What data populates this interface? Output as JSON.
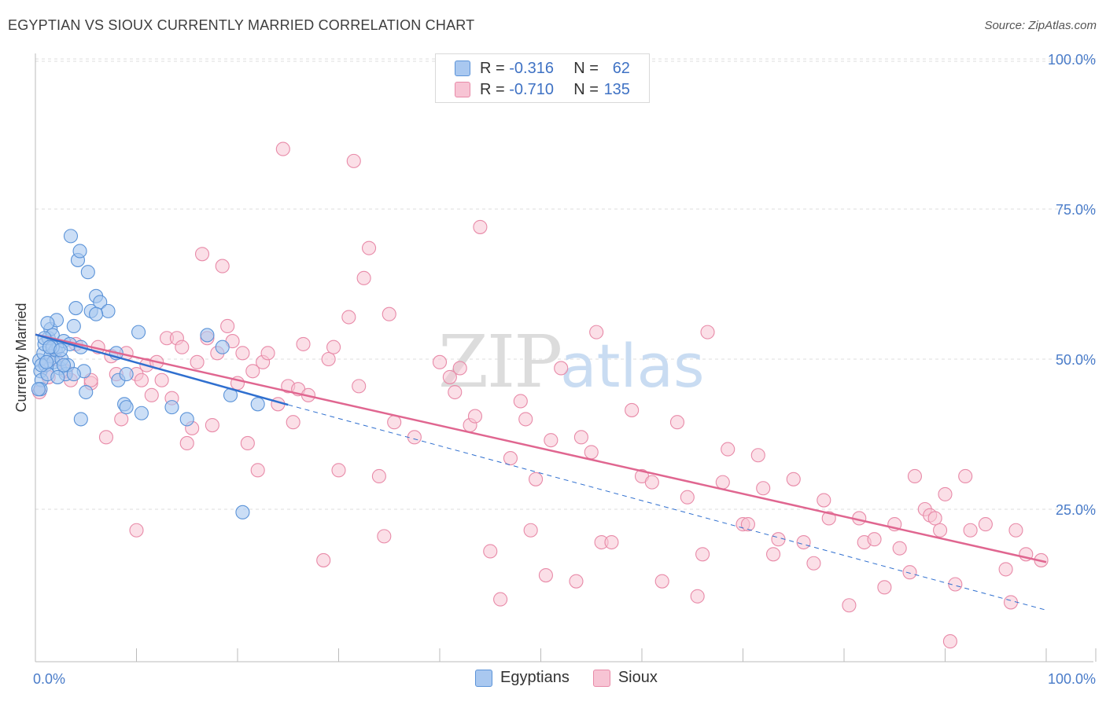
{
  "title": "EGYPTIAN VS SIOUX CURRENTLY MARRIED CORRELATION CHART",
  "source": "Source: ZipAtlas.com",
  "watermark": {
    "zip": "ZIP",
    "atlas": "atlas"
  },
  "colors": {
    "egyptians_fill": "#a9c8f0",
    "egyptians_stroke": "#5b93d8",
    "egyptians_line": "#2f6fcf",
    "sioux_fill": "#f7c4d4",
    "sioux_stroke": "#e88aa8",
    "sioux_line": "#e06690",
    "axis_label": "#4a7cc9",
    "grid": "#dddddd"
  },
  "legend": {
    "r_label": "R =",
    "n_label": "N =",
    "egyptians": {
      "r": "-0.316",
      "n": "62"
    },
    "sioux": {
      "r": "-0.710",
      "n": "135"
    }
  },
  "bottom_legend": {
    "egyptians": "Egyptians",
    "sioux": "Sioux"
  },
  "chart_data": {
    "type": "scatter",
    "title": "EGYPTIAN VS SIOUX CURRENTLY MARRIED CORRELATION CHART",
    "xlabel": "",
    "ylabel": "Currently Married",
    "xlim": [
      0,
      100
    ],
    "ylim": [
      0,
      100
    ],
    "x_tick_labels": [
      "0.0%",
      "100.0%"
    ],
    "y_tick_labels": [
      "100.0%",
      "75.0%",
      "50.0%",
      "25.0%"
    ],
    "y_ticks": [
      100,
      75,
      50,
      25
    ],
    "grid": true,
    "series": [
      {
        "name": "Egyptians",
        "trend": {
          "x0": 0,
          "y0": 54.1,
          "x1": 25.0,
          "y1": 42.4,
          "dashed_to_x": 100,
          "dashed_to_y": 8.2
        },
        "points": [
          [
            0.4,
            49.8
          ],
          [
            0.5,
            48.0
          ],
          [
            0.6,
            46.5
          ],
          [
            0.5,
            45.0
          ],
          [
            0.8,
            51.0
          ],
          [
            0.9,
            52.5
          ],
          [
            1.0,
            49.0
          ],
          [
            1.2,
            47.5
          ],
          [
            1.3,
            53.5
          ],
          [
            1.5,
            55.0
          ],
          [
            1.5,
            50.5
          ],
          [
            1.7,
            54.0
          ],
          [
            1.8,
            49.5
          ],
          [
            2.0,
            51.5
          ],
          [
            2.1,
            56.5
          ],
          [
            2.3,
            52.0
          ],
          [
            2.4,
            48.5
          ],
          [
            2.6,
            50.0
          ],
          [
            2.8,
            53.0
          ],
          [
            3.0,
            47.5
          ],
          [
            3.2,
            49.0
          ],
          [
            3.4,
            52.5
          ],
          [
            3.5,
            70.5
          ],
          [
            3.8,
            55.5
          ],
          [
            4.0,
            58.5
          ],
          [
            4.2,
            66.5
          ],
          [
            4.4,
            68.0
          ],
          [
            4.5,
            52.0
          ],
          [
            4.8,
            48.0
          ],
          [
            5.2,
            64.5
          ],
          [
            5.5,
            58.0
          ],
          [
            6.0,
            60.5
          ],
          [
            6.4,
            59.5
          ],
          [
            7.2,
            58.0
          ],
          [
            8.2,
            46.5
          ],
          [
            8.8,
            42.5
          ],
          [
            9.0,
            47.5
          ],
          [
            10.2,
            54.5
          ],
          [
            10.5,
            41.0
          ],
          [
            13.5,
            42.0
          ],
          [
            15.0,
            40.0
          ],
          [
            17.0,
            54.0
          ],
          [
            18.5,
            52.0
          ],
          [
            19.3,
            44.0
          ],
          [
            20.5,
            24.5
          ],
          [
            22.0,
            42.5
          ],
          [
            2.8,
            49.0
          ],
          [
            4.5,
            40.0
          ],
          [
            5.0,
            44.5
          ],
          [
            1.2,
            56.0
          ],
          [
            0.9,
            53.5
          ],
          [
            1.7,
            52.0
          ],
          [
            6.0,
            57.5
          ],
          [
            2.2,
            47.0
          ],
          [
            3.8,
            47.5
          ],
          [
            0.6,
            49.0
          ],
          [
            1.1,
            49.5
          ],
          [
            1.4,
            52.0
          ],
          [
            0.3,
            45.0
          ],
          [
            8.0,
            51.0
          ],
          [
            9.0,
            42.0
          ],
          [
            2.5,
            51.5
          ]
        ]
      },
      {
        "name": "Sioux",
        "trend": {
          "x0": 0,
          "y0": 54.1,
          "x1": 100,
          "y1": 16.2
        },
        "points": [
          [
            0.4,
            44.5
          ],
          [
            1.3,
            47.0
          ],
          [
            2.0,
            50.0
          ],
          [
            3.0,
            48.0
          ],
          [
            3.5,
            46.5
          ],
          [
            4.0,
            52.5
          ],
          [
            5.5,
            46.0
          ],
          [
            6.2,
            52.0
          ],
          [
            7.0,
            37.0
          ],
          [
            7.5,
            50.5
          ],
          [
            8.0,
            47.5
          ],
          [
            8.5,
            40.0
          ],
          [
            9.0,
            51.0
          ],
          [
            10.0,
            47.5
          ],
          [
            10.5,
            46.5
          ],
          [
            11.0,
            49.0
          ],
          [
            11.5,
            44.0
          ],
          [
            12.0,
            49.5
          ],
          [
            12.5,
            46.5
          ],
          [
            13.0,
            53.5
          ],
          [
            13.5,
            43.5
          ],
          [
            14.0,
            53.5
          ],
          [
            14.5,
            52.0
          ],
          [
            15.0,
            36.0
          ],
          [
            15.5,
            38.5
          ],
          [
            16.0,
            49.5
          ],
          [
            16.5,
            67.5
          ],
          [
            17.0,
            53.5
          ],
          [
            17.5,
            39.0
          ],
          [
            18.0,
            51.0
          ],
          [
            18.5,
            65.5
          ],
          [
            19.0,
            55.5
          ],
          [
            19.5,
            53.0
          ],
          [
            20.0,
            46.0
          ],
          [
            20.5,
            51.0
          ],
          [
            21.0,
            36.0
          ],
          [
            21.5,
            48.0
          ],
          [
            22.0,
            31.5
          ],
          [
            22.5,
            49.5
          ],
          [
            23.0,
            51.0
          ],
          [
            24.0,
            42.5
          ],
          [
            24.5,
            85.0
          ],
          [
            25.0,
            45.5
          ],
          [
            25.5,
            39.5
          ],
          [
            26.0,
            45.0
          ],
          [
            26.5,
            52.5
          ],
          [
            27.0,
            44.0
          ],
          [
            28.5,
            16.5
          ],
          [
            29.0,
            50.0
          ],
          [
            29.5,
            52.0
          ],
          [
            30.0,
            31.5
          ],
          [
            31.0,
            57.0
          ],
          [
            31.5,
            83.0
          ],
          [
            32.0,
            45.5
          ],
          [
            32.5,
            63.5
          ],
          [
            33.0,
            68.5
          ],
          [
            34.0,
            30.5
          ],
          [
            34.5,
            20.5
          ],
          [
            35.0,
            57.5
          ],
          [
            35.5,
            39.5
          ],
          [
            37.5,
            37.0
          ],
          [
            40.0,
            49.5
          ],
          [
            41.0,
            47.0
          ],
          [
            41.5,
            44.5
          ],
          [
            42.0,
            48.5
          ],
          [
            43.0,
            39.0
          ],
          [
            43.5,
            40.5
          ],
          [
            44.0,
            72.0
          ],
          [
            45.0,
            18.0
          ],
          [
            46.0,
            10.0
          ],
          [
            47.0,
            33.5
          ],
          [
            48.0,
            43.0
          ],
          [
            48.5,
            40.0
          ],
          [
            49.0,
            21.5
          ],
          [
            49.5,
            30.0
          ],
          [
            50.5,
            14.0
          ],
          [
            51.0,
            36.5
          ],
          [
            52.0,
            48.5
          ],
          [
            53.5,
            13.0
          ],
          [
            54.0,
            37.0
          ],
          [
            55.0,
            34.5
          ],
          [
            55.5,
            54.5
          ],
          [
            56.0,
            19.5
          ],
          [
            57.0,
            19.5
          ],
          [
            59.0,
            41.5
          ],
          [
            60.0,
            30.5
          ],
          [
            61.0,
            29.5
          ],
          [
            62.0,
            13.0
          ],
          [
            63.5,
            39.5
          ],
          [
            64.5,
            27.0
          ],
          [
            65.5,
            10.5
          ],
          [
            66.0,
            17.5
          ],
          [
            66.5,
            54.5
          ],
          [
            68.0,
            29.5
          ],
          [
            68.5,
            35.0
          ],
          [
            70.0,
            22.5
          ],
          [
            70.5,
            22.5
          ],
          [
            71.5,
            34.0
          ],
          [
            72.0,
            28.5
          ],
          [
            73.0,
            17.5
          ],
          [
            73.5,
            20.0
          ],
          [
            75.0,
            30.0
          ],
          [
            76.0,
            19.5
          ],
          [
            77.0,
            16.0
          ],
          [
            78.0,
            26.5
          ],
          [
            78.5,
            23.5
          ],
          [
            80.5,
            9.0
          ],
          [
            81.5,
            23.5
          ],
          [
            82.0,
            19.5
          ],
          [
            83.0,
            20.0
          ],
          [
            84.0,
            12.0
          ],
          [
            85.0,
            22.5
          ],
          [
            85.5,
            18.5
          ],
          [
            86.5,
            14.5
          ],
          [
            87.0,
            30.5
          ],
          [
            88.0,
            25.0
          ],
          [
            88.5,
            24.0
          ],
          [
            89.0,
            23.5
          ],
          [
            89.5,
            21.5
          ],
          [
            90.0,
            27.5
          ],
          [
            90.5,
            3.0
          ],
          [
            91.0,
            12.5
          ],
          [
            92.0,
            30.5
          ],
          [
            92.5,
            21.5
          ],
          [
            94.0,
            22.5
          ],
          [
            96.0,
            15.0
          ],
          [
            96.5,
            9.5
          ],
          [
            97.0,
            21.5
          ],
          [
            98.0,
            17.5
          ],
          [
            99.5,
            16.5
          ],
          [
            10.0,
            21.5
          ],
          [
            5.5,
            46.5
          ]
        ]
      }
    ]
  }
}
